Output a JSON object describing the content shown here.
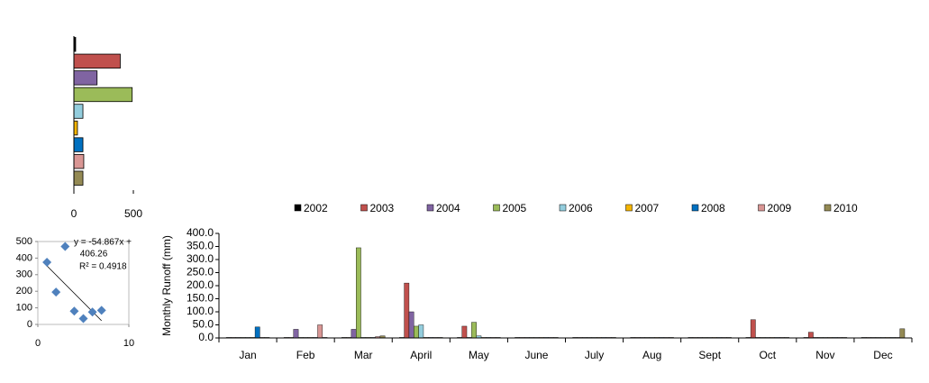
{
  "chart_data": [
    {
      "type": "barh",
      "values": [
        15,
        390,
        195,
        490,
        76,
        30,
        76,
        83,
        76
      ],
      "colors": [
        "#000000",
        "#c0504d",
        "#8064a2",
        "#9bbb59",
        "#93cddd",
        "#f4b400",
        "#0070c0",
        "#d99694",
        "#948a54"
      ],
      "xlim": [
        0,
        500
      ],
      "xticks": [
        0,
        500
      ]
    },
    {
      "type": "scatter",
      "x": [
        1,
        2,
        3,
        4,
        5,
        6,
        7
      ],
      "y": [
        375,
        195,
        470,
        80,
        35,
        75,
        85
      ],
      "color": "#4f81bd",
      "xlim": [
        0,
        10
      ],
      "xticks": [
        0,
        10
      ],
      "ylim": [
        0,
        500
      ],
      "yticks": [
        0,
        100,
        200,
        300,
        400,
        500
      ],
      "trendline": true,
      "annotations": [
        "y = -54.867x +",
        "406.26",
        "R² = 0.4918"
      ]
    },
    {
      "type": "bar",
      "y_label": "Monthly  Runoff (mm)",
      "categories": [
        "Jan",
        "Feb",
        "Mar",
        "April",
        "May",
        "June",
        "July",
        "Aug",
        "Sept",
        "Oct",
        "Nov",
        "Dec"
      ],
      "series": [
        {
          "name": "2002",
          "color": "#000000",
          "values": [
            2,
            2,
            2,
            2,
            2,
            2,
            2,
            2,
            2,
            2,
            2,
            2
          ]
        },
        {
          "name": "2003",
          "color": "#c0504d",
          "values": [
            2,
            2,
            2,
            210,
            45,
            2,
            2,
            2,
            2,
            70,
            22,
            2
          ]
        },
        {
          "name": "2004",
          "color": "#8064a2",
          "values": [
            2,
            33,
            33,
            100,
            2,
            2,
            2,
            2,
            2,
            2,
            2,
            2
          ]
        },
        {
          "name": "2005",
          "color": "#9bbb59",
          "values": [
            2,
            2,
            345,
            45,
            60,
            2,
            2,
            2,
            2,
            2,
            2,
            2
          ]
        },
        {
          "name": "2006",
          "color": "#93cddd",
          "values": [
            2,
            2,
            2,
            50,
            8,
            2,
            2,
            2,
            2,
            2,
            2,
            2
          ]
        },
        {
          "name": "2007",
          "color": "#f4b400",
          "values": [
            2,
            2,
            2,
            2,
            2,
            2,
            2,
            2,
            2,
            2,
            2,
            2
          ]
        },
        {
          "name": "2008",
          "color": "#0070c0",
          "values": [
            42,
            2,
            2,
            2,
            2,
            2,
            2,
            2,
            2,
            2,
            2,
            2
          ]
        },
        {
          "name": "2009",
          "color": "#d99694",
          "values": [
            2,
            50,
            5,
            2,
            2,
            2,
            2,
            2,
            2,
            2,
            2,
            2
          ]
        },
        {
          "name": "2010",
          "color": "#948a54",
          "values": [
            2,
            2,
            8,
            2,
            2,
            2,
            2,
            2,
            2,
            2,
            2,
            35
          ]
        }
      ],
      "ylim": [
        0,
        400
      ],
      "yticks": [
        {
          "value": 0,
          "label": "0.0"
        },
        {
          "value": 50,
          "label": "50.0"
        },
        {
          "value": 100,
          "label": "100.0"
        },
        {
          "value": 150,
          "label": "150.0"
        },
        {
          "value": 200,
          "label": "200.0"
        },
        {
          "value": 250,
          "label": "250.0"
        },
        {
          "value": 300,
          "label": "300.0"
        },
        {
          "value": 350,
          "label": "350.0"
        },
        {
          "value": 400,
          "label": "400.0"
        }
      ]
    }
  ]
}
